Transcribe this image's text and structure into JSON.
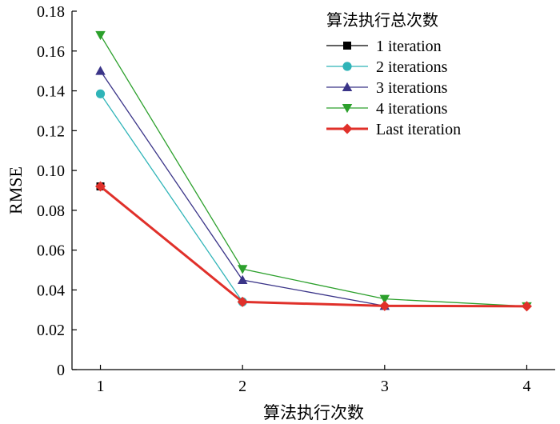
{
  "chart_data": {
    "type": "line",
    "xlabel": "算法执行次数",
    "ylabel": "RMSE",
    "x": [
      1,
      2,
      3,
      4
    ],
    "xlim": [
      0.8,
      4.2
    ],
    "ylim": [
      0,
      0.18
    ],
    "yticks": [
      "0",
      "0.02",
      "0.04",
      "0.06",
      "0.08",
      "0.10",
      "0.12",
      "0.14",
      "0.16",
      "0.18"
    ],
    "xticks": [
      "1",
      "2",
      "3",
      "4"
    ],
    "grid": false,
    "legend": {
      "title": "算法执行总次数",
      "placement": "top-right"
    },
    "series": [
      {
        "name": "1 iteration",
        "color": "#000000",
        "marker": "square",
        "values": [
          0.092,
          null,
          null,
          null
        ]
      },
      {
        "name": "2 iterations",
        "color": "#2fb4b8",
        "marker": "circle",
        "values": [
          0.1385,
          0.034,
          null,
          null
        ]
      },
      {
        "name": "3 iterations",
        "color": "#3a3488",
        "marker": "triangle-up",
        "values": [
          0.15,
          0.045,
          0.032,
          null
        ]
      },
      {
        "name": "4 iterations",
        "color": "#2ca02c",
        "marker": "triangle-down",
        "values": [
          0.168,
          0.0505,
          0.0355,
          0.0318
        ]
      },
      {
        "name": "Last iteration",
        "color": "#e0302a",
        "marker": "diamond",
        "values": [
          0.092,
          0.034,
          0.032,
          0.0318
        ]
      }
    ]
  }
}
